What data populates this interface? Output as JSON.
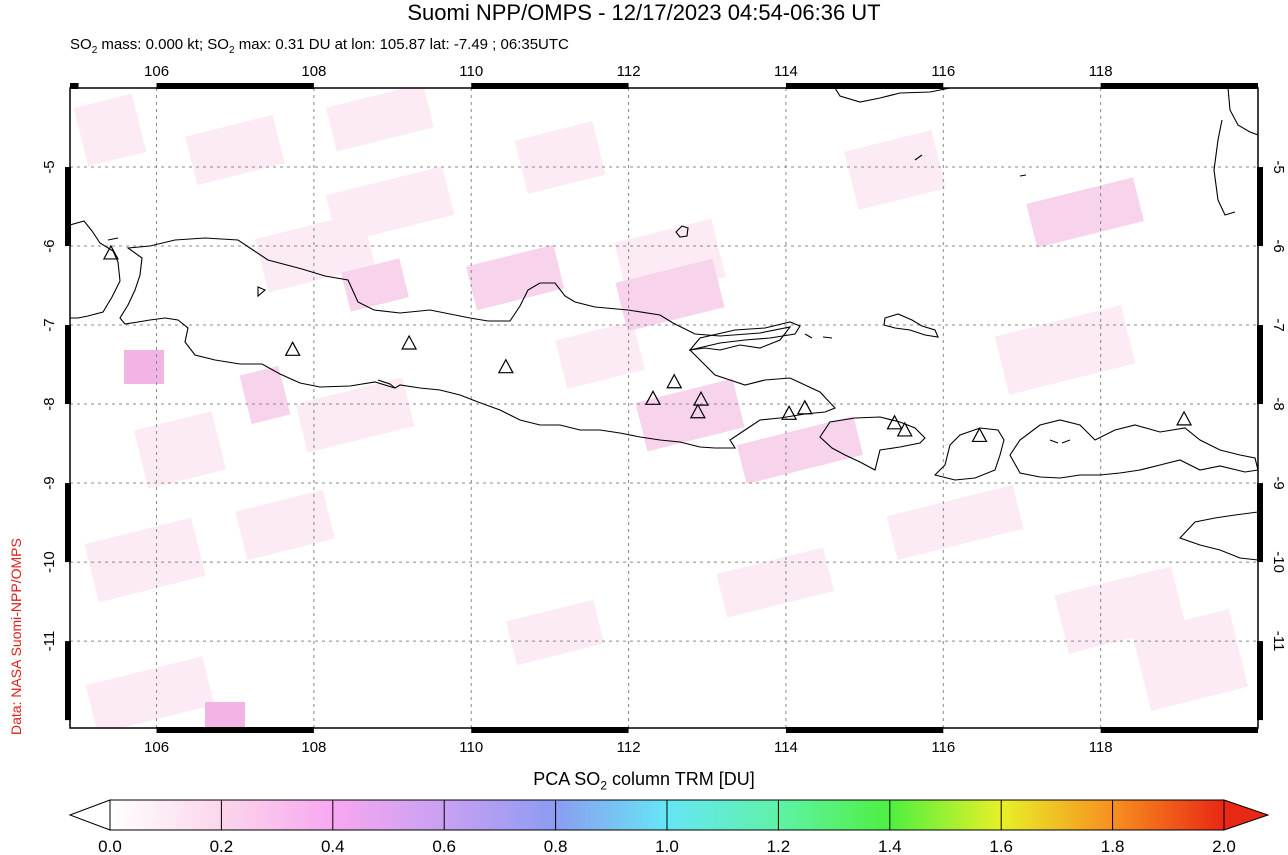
{
  "title": "Suomi NPP/OMPS - 12/17/2023 04:54-06:36 UT",
  "subtitle": {
    "prefix": "SO",
    "sub": "2",
    "mid": " mass: 0.000 kt; SO",
    "sub2": "2",
    "rest": " max: 0.31 DU at lon: 105.87 lat: -7.49 ; 06:35UTC"
  },
  "credit": "Data: NASA Suomi-NPP/OMPS",
  "colorbar": {
    "title_prefix": "PCA SO",
    "title_sub": "2",
    "title_rest": " column TRM [DU]",
    "ticks": [
      "0.0",
      "0.2",
      "0.4",
      "0.6",
      "0.8",
      "1.0",
      "1.2",
      "1.4",
      "1.6",
      "1.8",
      "2.0"
    ]
  },
  "map": {
    "lon_ticks": [
      "106",
      "108",
      "110",
      "112",
      "114",
      "116",
      "118"
    ],
    "lat_ticks": [
      "-5",
      "-6",
      "-7",
      "-8",
      "-9",
      "-10",
      "-11"
    ],
    "lon_range": [
      104.9,
      120.0
    ],
    "lat_range": [
      -12.1,
      -4.0
    ],
    "so2_max_DU": 0.31,
    "volcanoes": [
      {
        "lon": 105.42,
        "lat": -6.1
      },
      {
        "lon": 107.73,
        "lat": -7.32
      },
      {
        "lon": 109.21,
        "lat": -7.24
      },
      {
        "lon": 110.44,
        "lat": -7.54
      },
      {
        "lon": 112.31,
        "lat": -7.94
      },
      {
        "lon": 112.58,
        "lat": -7.73
      },
      {
        "lon": 112.92,
        "lat": -7.95
      },
      {
        "lon": 112.88,
        "lat": -8.11
      },
      {
        "lon": 114.04,
        "lat": -8.13
      },
      {
        "lon": 114.24,
        "lat": -8.06
      },
      {
        "lon": 115.38,
        "lat": -8.25
      },
      {
        "lon": 115.51,
        "lat": -8.34
      },
      {
        "lon": 116.46,
        "lat": -8.41
      },
      {
        "lon": 119.06,
        "lat": -8.2
      }
    ]
  }
}
